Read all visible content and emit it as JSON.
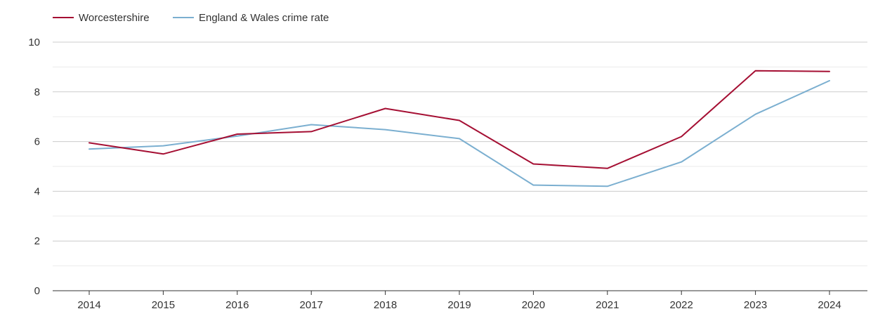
{
  "chart_data": {
    "type": "line",
    "title": "",
    "xlabel": "",
    "ylabel": "",
    "categories": [
      "2014",
      "2015",
      "2016",
      "2017",
      "2018",
      "2019",
      "2020",
      "2021",
      "2022",
      "2023",
      "2024"
    ],
    "ylim": [
      0,
      10
    ],
    "yticks": [
      0,
      2,
      4,
      6,
      8,
      10
    ],
    "grid": true,
    "legend_position": "top-left",
    "series": [
      {
        "name": "Worcestershire",
        "color": "#a50f33",
        "values": [
          5.95,
          5.5,
          6.3,
          6.4,
          7.33,
          6.85,
          5.1,
          4.92,
          6.2,
          8.85,
          8.82
        ]
      },
      {
        "name": "England & Wales crime rate",
        "color": "#7bafd0",
        "values": [
          5.7,
          5.83,
          6.22,
          6.68,
          6.48,
          6.12,
          4.25,
          4.2,
          5.18,
          7.1,
          8.45
        ]
      }
    ]
  }
}
